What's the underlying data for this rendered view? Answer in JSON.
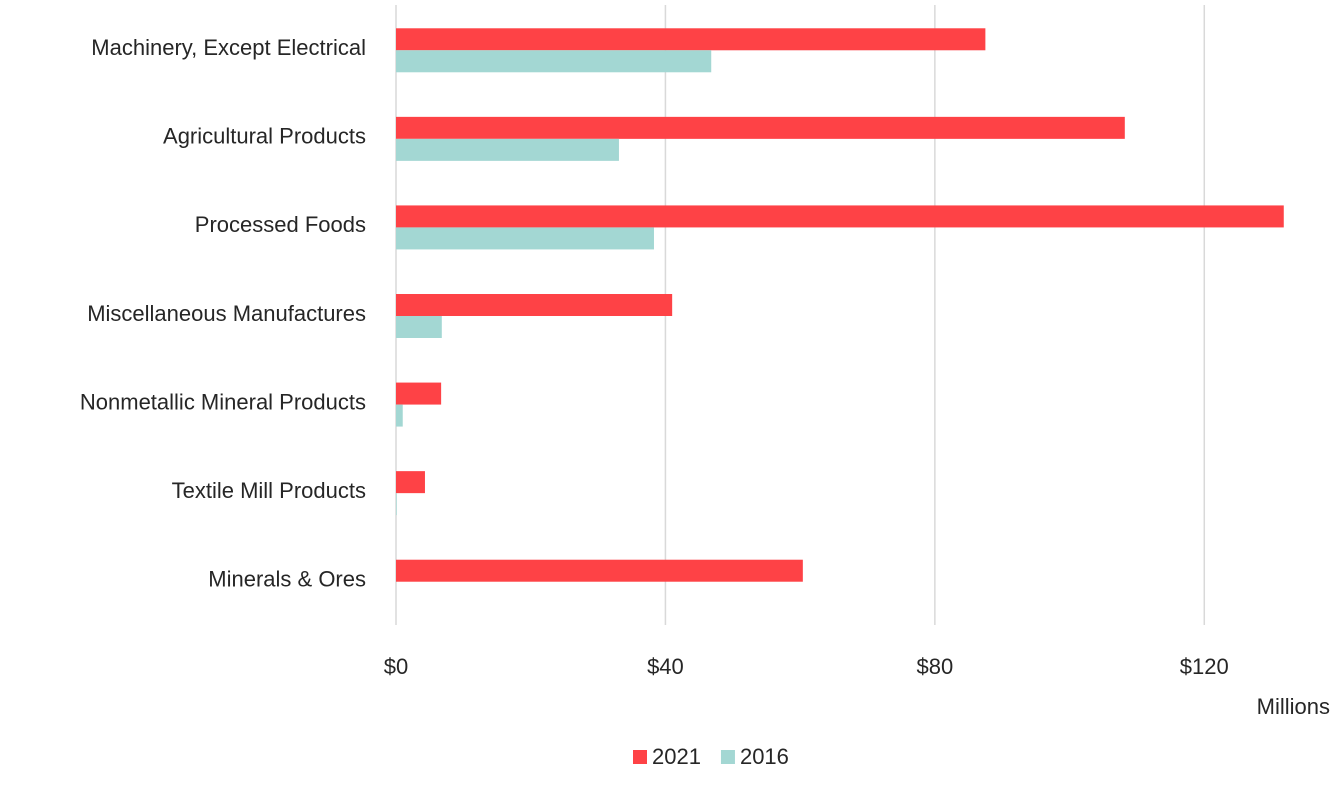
{
  "chart_data": {
    "type": "hbar",
    "categories": [
      "Machinery, Except Electrical",
      "Agricultural Products",
      "Processed Foods",
      "Miscellaneous Manufactures",
      "Nonmetallic Mineral Products",
      "Textile Mill Products",
      "Minerals & Ores"
    ],
    "series": [
      {
        "name": "2021",
        "color": "#fe4246",
        "values": [
          87.5,
          108.2,
          131.8,
          41.0,
          6.7,
          4.3,
          60.4
        ]
      },
      {
        "name": "2016",
        "color": "#a3d7d3",
        "values": [
          46.8,
          33.1,
          38.3,
          6.8,
          1.0,
          0.1,
          0
        ]
      }
    ],
    "xlabel": "Millions",
    "xlim": [
      0,
      140
    ],
    "xticks": [
      {
        "value": 0,
        "label": "$0"
      },
      {
        "value": 40,
        "label": "$40"
      },
      {
        "value": 80,
        "label": "$80"
      },
      {
        "value": 120,
        "label": "$120"
      }
    ],
    "grid": true,
    "legend": "bottom"
  }
}
